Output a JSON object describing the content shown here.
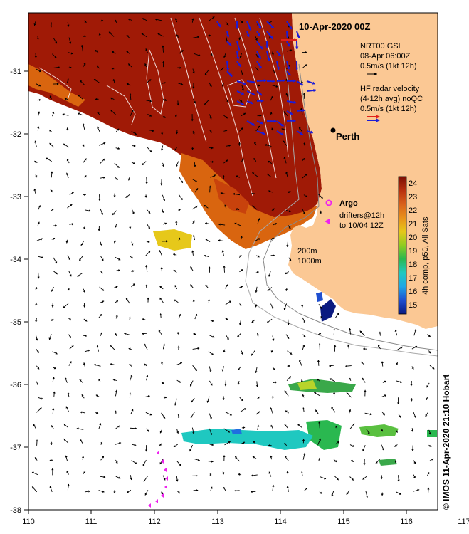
{
  "title": "10-Apr-2020 00Z",
  "x_ticks": [
    "110",
    "111",
    "112",
    "113",
    "114",
    "115",
    "116",
    "117"
  ],
  "y_ticks": [
    "-31",
    "-32",
    "-33",
    "-34",
    "-35",
    "-36",
    "-37",
    "-38"
  ],
  "legend": {
    "model_line1": "NRT00 GSL",
    "model_line2": "08-Apr 06:00Z",
    "model_line3": "0.5m/s (1kt 12h)",
    "radar_line1": "HF radar velocity",
    "radar_line2": "(4-12h avg) noQC",
    "radar_line3": "0.5m/s (1kt 12h)"
  },
  "places": {
    "perth": "Perth"
  },
  "argo": {
    "label": "Argo",
    "drifters_line1": "drifters@12h",
    "drifters_line2": "to 10/04 12Z"
  },
  "isobaths": {
    "line1": "200m",
    "line2": "1000m"
  },
  "colorbar": {
    "label": "4h comp, p50, All Sats",
    "ticks": [
      "24",
      "23",
      "22",
      "21",
      "20",
      "19",
      "18",
      "17",
      "16",
      "15"
    ],
    "min": 14.5,
    "max": 24.5
  },
  "credit": "© IMOS 11-Apr-2020 21:10 Hobart",
  "colors": {
    "land": "#fbc894",
    "warm_sst": "#a01a06",
    "mid_sst": "#d9650f",
    "model_arrow": "#000000",
    "radar_arrow": "#1c1cd6",
    "radar_ref_top": "#e0201a",
    "argo": "#ee22ee"
  }
}
